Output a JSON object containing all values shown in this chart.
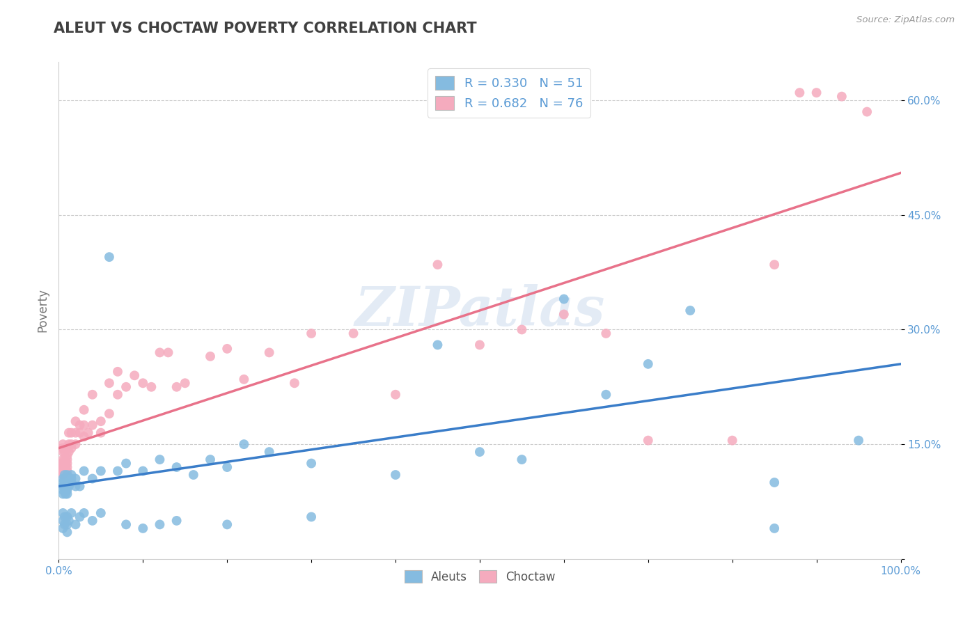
{
  "title": "ALEUT VS CHOCTAW POVERTY CORRELATION CHART",
  "source": "Source: ZipAtlas.com",
  "ylabel": "Poverty",
  "xlim": [
    0.0,
    1.0
  ],
  "ylim": [
    0.0,
    0.65
  ],
  "xticks": [
    0.0,
    0.1,
    0.2,
    0.3,
    0.4,
    0.5,
    0.6,
    0.7,
    0.8,
    0.9,
    1.0
  ],
  "xticklabels": [
    "0.0%",
    "",
    "",
    "",
    "",
    "",
    "",
    "",
    "",
    "",
    "100.0%"
  ],
  "yticks": [
    0.0,
    0.15,
    0.3,
    0.45,
    0.6
  ],
  "yticklabels": [
    "",
    "15.0%",
    "30.0%",
    "45.0%",
    "60.0%"
  ],
  "aleuts_R": 0.33,
  "aleuts_N": 51,
  "choctaw_R": 0.682,
  "choctaw_N": 76,
  "aleut_color": "#85BBE0",
  "choctaw_color": "#F5ABBE",
  "aleut_line_color": "#3A7DC9",
  "choctaw_line_color": "#E8728A",
  "background_color": "#FFFFFF",
  "grid_color": "#CCCCCC",
  "watermark": "ZIPatlas",
  "title_color": "#404040",
  "axis_label_color": "#5B9BD5",
  "legend_text_color": "#5B9BD5",
  "aleut_line_x0": 0.0,
  "aleut_line_y0": 0.095,
  "aleut_line_x1": 1.0,
  "aleut_line_y1": 0.255,
  "choctaw_line_x0": 0.0,
  "choctaw_line_y0": 0.145,
  "choctaw_line_x1": 1.0,
  "choctaw_line_y1": 0.505,
  "aleuts_x": [
    0.005,
    0.005,
    0.005,
    0.005,
    0.005,
    0.007,
    0.007,
    0.007,
    0.007,
    0.008,
    0.008,
    0.01,
    0.01,
    0.01,
    0.01,
    0.01,
    0.01,
    0.01,
    0.01,
    0.012,
    0.015,
    0.015,
    0.015,
    0.02,
    0.02,
    0.025,
    0.03,
    0.04,
    0.05,
    0.06,
    0.07,
    0.08,
    0.1,
    0.12,
    0.14,
    0.16,
    0.18,
    0.2,
    0.22,
    0.25,
    0.3,
    0.4,
    0.45,
    0.5,
    0.55,
    0.6,
    0.65,
    0.7,
    0.75,
    0.85,
    0.95
  ],
  "aleuts_y": [
    0.085,
    0.09,
    0.095,
    0.1,
    0.105,
    0.095,
    0.1,
    0.105,
    0.11,
    0.085,
    0.09,
    0.095,
    0.1,
    0.105,
    0.11,
    0.085,
    0.09,
    0.095,
    0.1,
    0.095,
    0.1,
    0.105,
    0.11,
    0.095,
    0.105,
    0.095,
    0.115,
    0.105,
    0.115,
    0.395,
    0.115,
    0.125,
    0.115,
    0.13,
    0.12,
    0.11,
    0.13,
    0.12,
    0.15,
    0.14,
    0.125,
    0.11,
    0.28,
    0.14,
    0.13,
    0.34,
    0.215,
    0.255,
    0.325,
    0.1,
    0.155
  ],
  "aleuts_below15_x": [
    0.005,
    0.005,
    0.005,
    0.007,
    0.007,
    0.01,
    0.01,
    0.01,
    0.012,
    0.015,
    0.02,
    0.025,
    0.03,
    0.04,
    0.05,
    0.08,
    0.1,
    0.12,
    0.14,
    0.2,
    0.3,
    0.85
  ],
  "aleuts_below15_y": [
    0.04,
    0.05,
    0.06,
    0.045,
    0.055,
    0.035,
    0.045,
    0.055,
    0.05,
    0.06,
    0.045,
    0.055,
    0.06,
    0.05,
    0.06,
    0.045,
    0.04,
    0.045,
    0.05,
    0.045,
    0.055,
    0.04
  ],
  "choctaw_x": [
    0.003,
    0.003,
    0.003,
    0.005,
    0.005,
    0.005,
    0.005,
    0.005,
    0.005,
    0.005,
    0.005,
    0.007,
    0.007,
    0.007,
    0.007,
    0.007,
    0.008,
    0.008,
    0.008,
    0.01,
    0.01,
    0.01,
    0.01,
    0.01,
    0.01,
    0.012,
    0.012,
    0.012,
    0.015,
    0.015,
    0.015,
    0.02,
    0.02,
    0.02,
    0.025,
    0.025,
    0.03,
    0.03,
    0.03,
    0.035,
    0.04,
    0.04,
    0.05,
    0.05,
    0.06,
    0.06,
    0.07,
    0.07,
    0.08,
    0.09,
    0.1,
    0.11,
    0.12,
    0.13,
    0.14,
    0.15,
    0.18,
    0.2,
    0.22,
    0.25,
    0.28,
    0.3,
    0.35,
    0.4,
    0.45,
    0.5,
    0.55,
    0.6,
    0.65,
    0.7,
    0.8,
    0.85,
    0.88,
    0.9,
    0.93,
    0.96
  ],
  "choctaw_y": [
    0.115,
    0.12,
    0.125,
    0.11,
    0.115,
    0.12,
    0.125,
    0.13,
    0.14,
    0.145,
    0.15,
    0.115,
    0.12,
    0.125,
    0.13,
    0.14,
    0.115,
    0.12,
    0.125,
    0.115,
    0.12,
    0.125,
    0.13,
    0.135,
    0.145,
    0.14,
    0.15,
    0.165,
    0.145,
    0.15,
    0.165,
    0.15,
    0.165,
    0.18,
    0.165,
    0.175,
    0.16,
    0.175,
    0.195,
    0.165,
    0.175,
    0.215,
    0.165,
    0.18,
    0.19,
    0.23,
    0.215,
    0.245,
    0.225,
    0.24,
    0.23,
    0.225,
    0.27,
    0.27,
    0.225,
    0.23,
    0.265,
    0.275,
    0.235,
    0.27,
    0.23,
    0.295,
    0.295,
    0.215,
    0.385,
    0.28,
    0.3,
    0.32,
    0.295,
    0.155,
    0.155,
    0.385,
    0.61,
    0.61,
    0.605,
    0.585
  ]
}
